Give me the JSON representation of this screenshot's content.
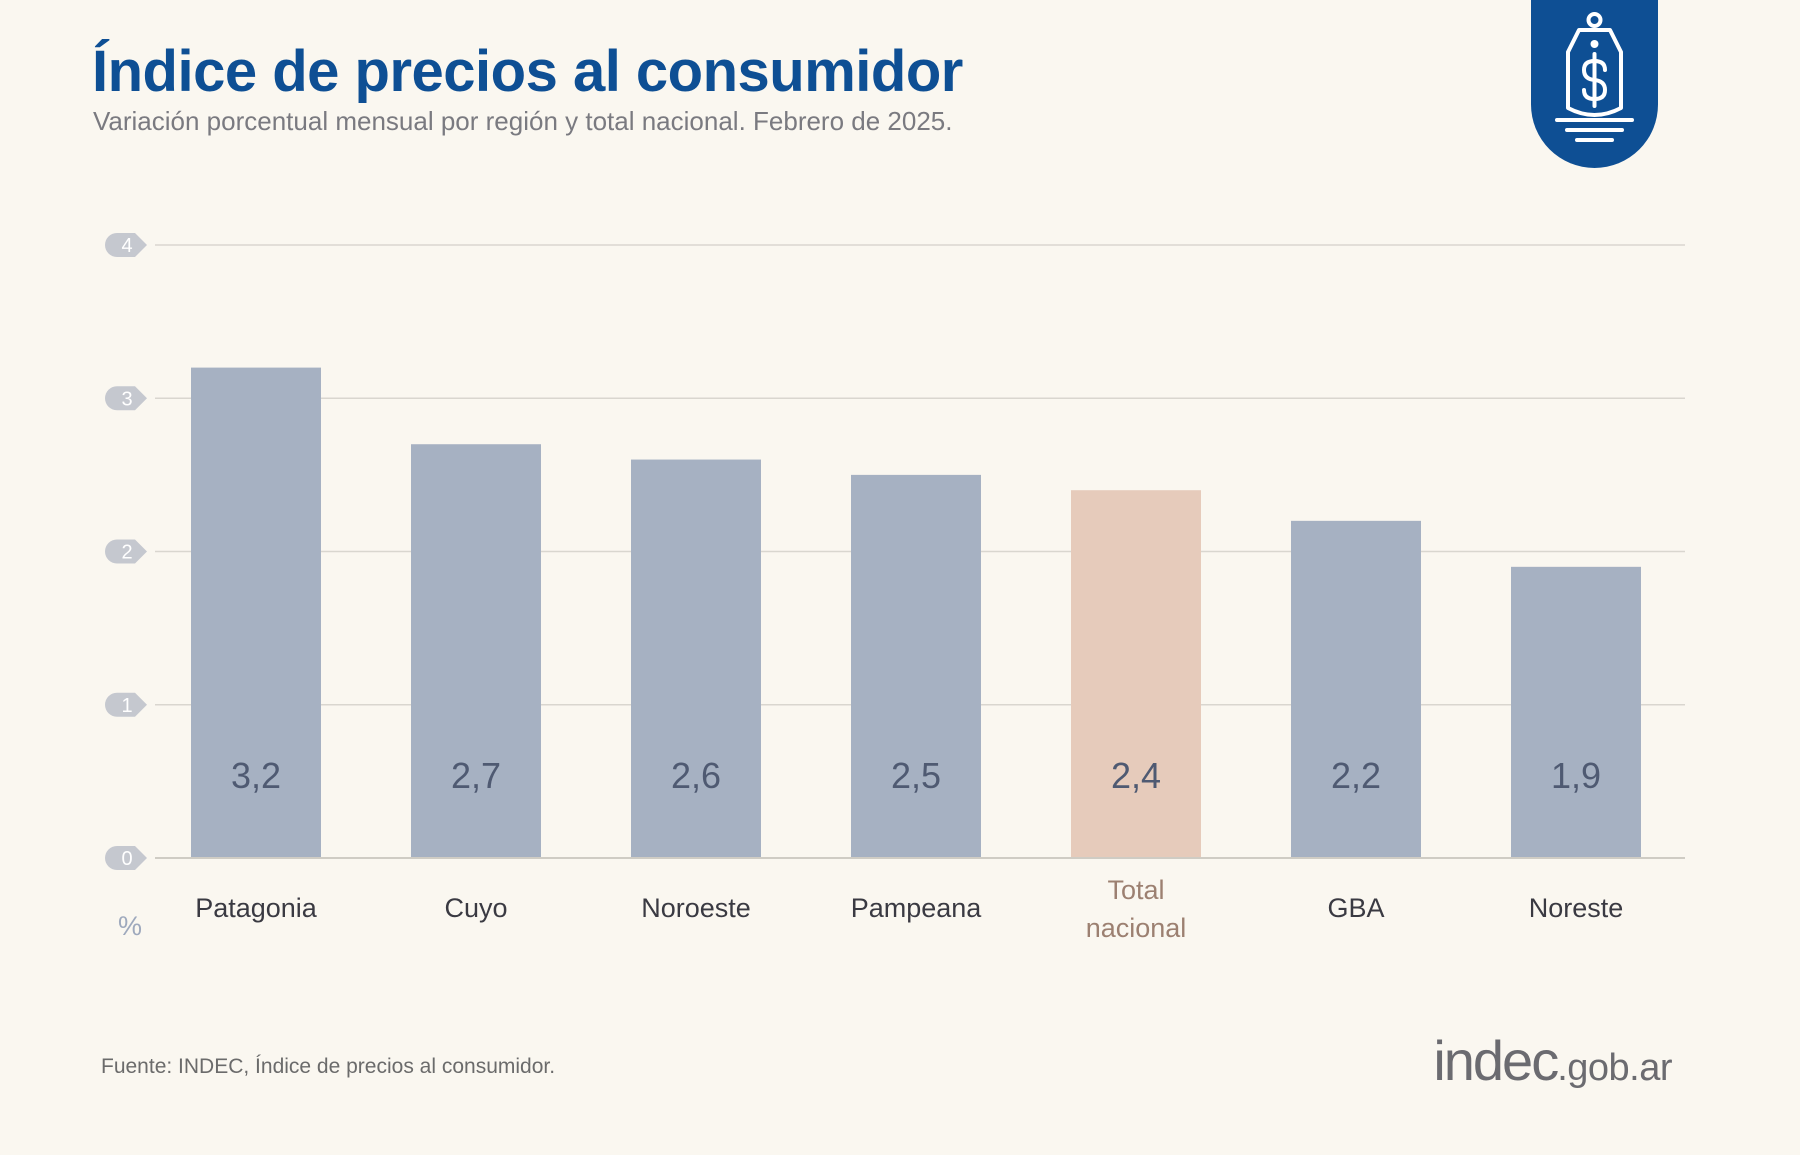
{
  "header": {
    "title": "Índice de precios al consumidor",
    "subtitle": "Variación porcentual mensual por región y total nacional. Febrero de 2025."
  },
  "badge": {
    "icon": "price-tag-dollar-icon",
    "color": "#0e4f94"
  },
  "footer": {
    "source": "Fuente: INDEC, Índice de precios al consumidor.",
    "brand_main": "indec",
    "brand_domain": ".gob.ar"
  },
  "colors": {
    "background": "#faf7f0",
    "bar_region": "#a6b1c2",
    "bar_total": "#e6cbbb",
    "label_region": "#3a3a42",
    "label_total": "#9c8071",
    "value_text": "#4f5a72",
    "grid": "#d9d6cf",
    "tick_circle": "#c5c8cf"
  },
  "chart_data": {
    "type": "bar",
    "categories": [
      "Patagonia",
      "Cuyo",
      "Noroeste",
      "Pampeana",
      "Total nacional",
      "GBA",
      "Noreste"
    ],
    "category_lines": [
      [
        "Patagonia"
      ],
      [
        "Cuyo"
      ],
      [
        "Noroeste"
      ],
      [
        "Pampeana"
      ],
      [
        "Total",
        "nacional"
      ],
      [
        "GBA"
      ],
      [
        "Noreste"
      ]
    ],
    "values": [
      3.2,
      2.7,
      2.6,
      2.5,
      2.4,
      2.2,
      1.9
    ],
    "value_labels": [
      "3,2",
      "2,7",
      "2,6",
      "2,5",
      "2,4",
      "2,2",
      "1,9"
    ],
    "highlight": "Total nacional",
    "ylim": [
      0,
      4
    ],
    "yticks": [
      0,
      1,
      2,
      3,
      4
    ],
    "ytick_labels": [
      "0",
      "1",
      "2",
      "3",
      "4"
    ],
    "unit_label": "%",
    "grid": true,
    "title": "Índice de precios al consumidor",
    "xlabel": "",
    "ylabel": ""
  }
}
